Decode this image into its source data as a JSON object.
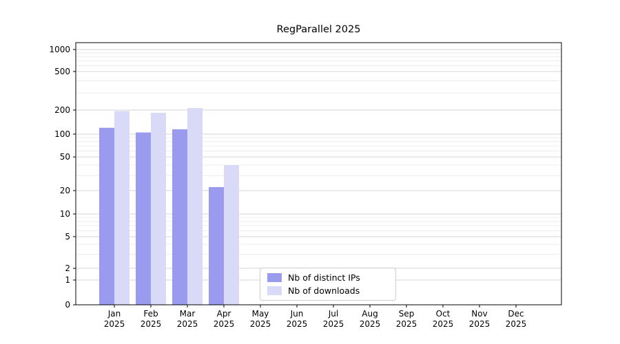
{
  "chart_data": {
    "type": "bar",
    "title": "RegParallel 2025",
    "yscale": "symlog",
    "grid": true,
    "legend_position": "lower center inside plot",
    "y_ticks": [
      0,
      1,
      2,
      5,
      10,
      20,
      50,
      100,
      200,
      500,
      1000
    ],
    "ylim": [
      0,
      1000
    ],
    "categories": [
      "Jan",
      "Feb",
      "Mar",
      "Apr",
      "May",
      "Jun",
      "Jul",
      "Aug",
      "Sep",
      "Oct",
      "Nov",
      "Dec"
    ],
    "x_tick_sublabel": "2025",
    "series": [
      {
        "name": "Nb of distinct IPs",
        "color": "#9a9bee",
        "values": [
          120,
          105,
          115,
          22,
          0,
          0,
          0,
          0,
          0,
          0,
          0,
          0
        ]
      },
      {
        "name": "Nb of downloads",
        "color": "#d9daf8",
        "values": [
          195,
          185,
          210,
          40,
          0,
          0,
          0,
          0,
          0,
          0,
          0,
          0
        ]
      }
    ]
  }
}
